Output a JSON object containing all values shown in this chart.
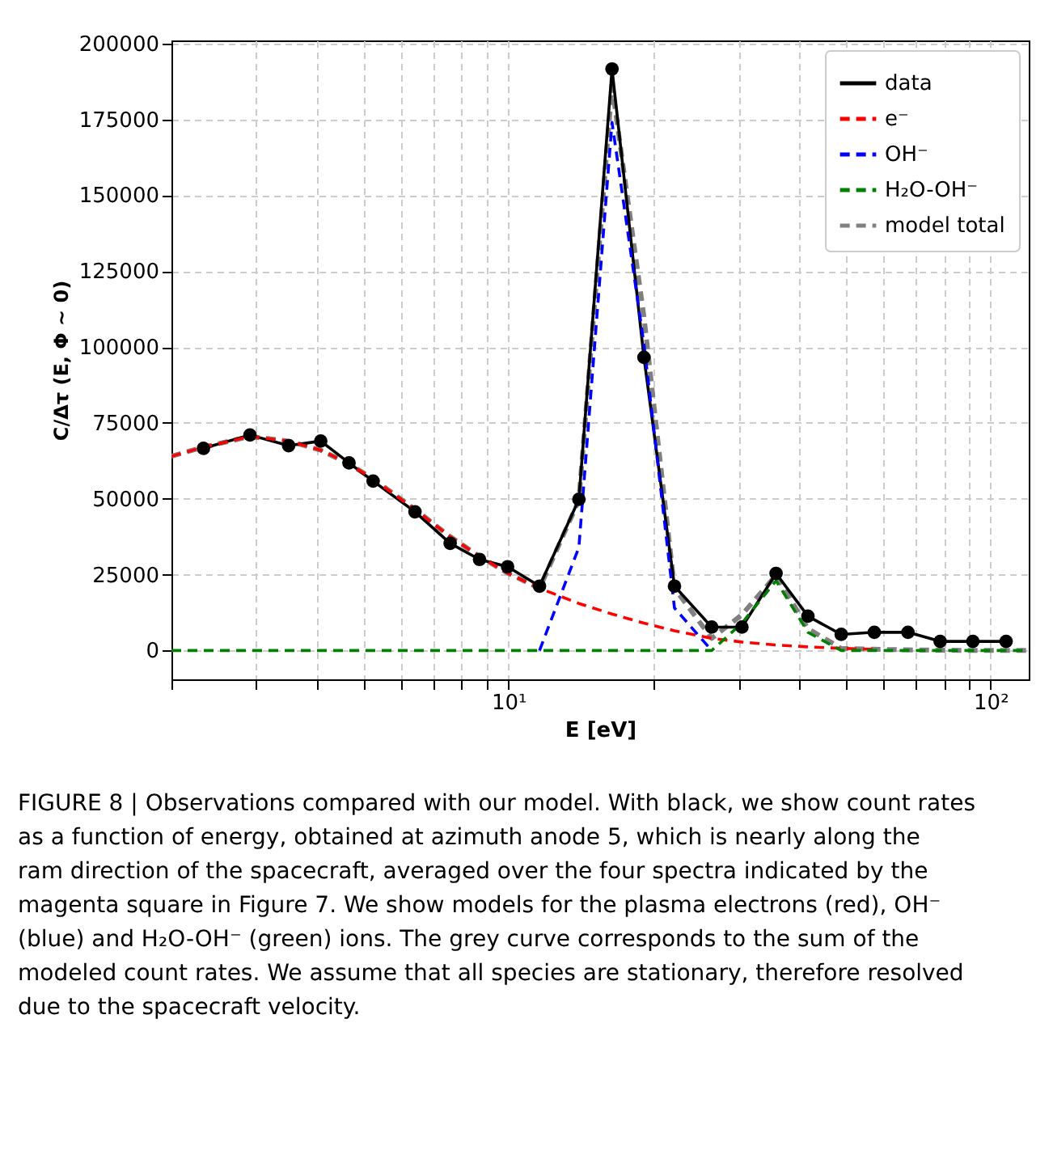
{
  "chart_data": {
    "type": "line",
    "xlabel": "E [eV]",
    "ylabel": "C/Δτ (E, Φ ∼ 0)",
    "log": "x",
    "grid": true,
    "legend": "top right",
    "xlim": [
      2,
      120
    ],
    "ylim": [
      -9500,
      201000
    ],
    "xticks": [
      {
        "value": 2,
        "label": null
      },
      {
        "value": 3,
        "label": null
      },
      {
        "value": 4,
        "label": null
      },
      {
        "value": 5,
        "label": null
      },
      {
        "value": 6,
        "label": null
      },
      {
        "value": 7,
        "label": null
      },
      {
        "value": 8,
        "label": null
      },
      {
        "value": 9,
        "label": null
      },
      {
        "value": 10,
        "label": "10¹"
      },
      {
        "value": 20,
        "label": null
      },
      {
        "value": 30,
        "label": null
      },
      {
        "value": 40,
        "label": null
      },
      {
        "value": 50,
        "label": null
      },
      {
        "value": 60,
        "label": null
      },
      {
        "value": 70,
        "label": null
      },
      {
        "value": 80,
        "label": null
      },
      {
        "value": 90,
        "label": null
      },
      {
        "value": 100,
        "label": "10²"
      }
    ],
    "yticks": [
      0,
      25000,
      50000,
      75000,
      100000,
      125000,
      150000,
      175000,
      200000
    ],
    "x": [
      2,
      2.33,
      2.91,
      3.5,
      4.08,
      4.67,
      5.24,
      6.4,
      7.57,
      8.71,
      9.96,
      11.6,
      14,
      16.4,
      19.1,
      22.1,
      26.4,
      30.5,
      35.9,
      41.8,
      49,
      57.4,
      67.4,
      78.6,
      91.9,
      107.7,
      120
    ],
    "series": [
      {
        "name": "data",
        "color": "#000000",
        "line_style": "solid",
        "marker": "circle",
        "x": [
          2.33,
          2.91,
          3.5,
          4.08,
          4.67,
          5.24,
          6.4,
          7.57,
          8.71,
          9.96,
          11.6,
          14,
          16.4,
          19.1,
          22.1,
          26.4,
          30.5,
          35.9,
          41.8,
          49,
          57.4,
          67.4,
          78.6,
          91.9,
          107.7
        ],
        "values": [
          66600,
          71000,
          67500,
          69000,
          61800,
          55800,
          45700,
          35300,
          30000,
          27600,
          21200,
          49800,
          191600,
          96600,
          21200,
          7700,
          7700,
          25400,
          11300,
          5300,
          6000,
          6000,
          3000,
          3000,
          3000
        ]
      },
      {
        "name": "e⁻",
        "color": "#ff0000",
        "line_style": "dashed",
        "marker": "none",
        "values": [
          64000,
          67000,
          70500,
          69000,
          66000,
          61500,
          56500,
          46500,
          37500,
          31000,
          25500,
          20500,
          15500,
          12000,
          9000,
          6500,
          4000,
          2800,
          1800,
          1200,
          700,
          400,
          null,
          null,
          null,
          null,
          null
        ]
      },
      {
        "name": "OH⁻",
        "color": "#0000ff",
        "line_style": "dashed",
        "marker": "none",
        "values": [
          null,
          null,
          null,
          null,
          null,
          null,
          null,
          null,
          null,
          null,
          null,
          0,
          34000,
          174000,
          101000,
          14000,
          0,
          null,
          null,
          null,
          null,
          null,
          null,
          null,
          null,
          null,
          null
        ]
      },
      {
        "name": "H₂O-OH⁻",
        "color": "#008000",
        "line_style": "dashed",
        "marker": "none",
        "values": [
          0,
          0,
          0,
          0,
          0,
          0,
          0,
          0,
          0,
          0,
          0,
          0,
          0,
          0,
          0,
          0,
          0,
          9000,
          23000,
          6000,
          0,
          0,
          0,
          0,
          0,
          0,
          0
        ]
      },
      {
        "name": "model total",
        "color": "#808080",
        "line_style": "dashed",
        "marker": "none",
        "values": [
          64000,
          67000,
          70500,
          69000,
          66000,
          61500,
          56500,
          46500,
          37500,
          31000,
          25500,
          20500,
          49500,
          186000,
          110000,
          20500,
          4000,
          11800,
          24800,
          7200,
          700,
          400,
          200,
          100,
          0,
          0,
          0
        ]
      }
    ],
    "annotations": [
      "FIGURE 8 | Observations compared with our model. With black, we show count rates as a function of energy, obtained at azimuth anode 5, which is nearly along the ram direction of the spacecraft, averaged over the four spectra indicated by the magenta square in Figure 7. We show models for the plasma electrons (red), OH⁻ (blue) and H₂O-OH⁻ (green) ions. The grey curve corresponds to the sum of the modeled count rates. We assume that all species are stationary, therefore resolved due to the spacecraft velocity."
    ]
  }
}
